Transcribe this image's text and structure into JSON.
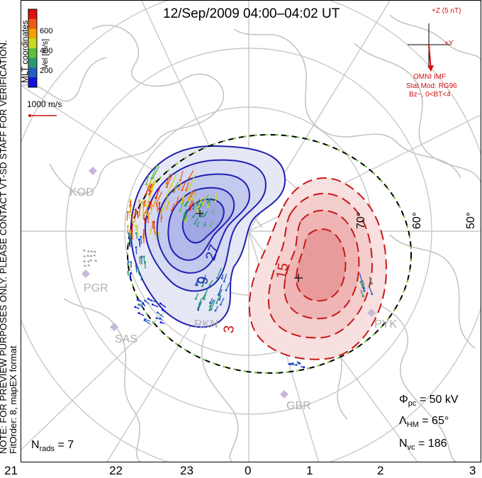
{
  "title": "12/Sep/2009 04:00–04:02 UT",
  "side_note": {
    "line1": "NOTE: FOR PREVIEW PURPOSES ONLY. PLEASE CONTACT VT-SD STAFF FOR VERIFICATION.",
    "line2": "FitOrder: 8, mapEX format"
  },
  "coord_label": "MLT coordinates",
  "colorbar": {
    "label": "Vel [m/s]",
    "ticks": [
      "600",
      "400",
      "200"
    ],
    "colors": [
      "#e01010",
      "#f05a10",
      "#f5a000",
      "#c8d820",
      "#5cc040",
      "#2a9a70",
      "#2060c0",
      "#1010e0"
    ]
  },
  "vector_scale": "1000 m/s",
  "imf": {
    "z_label": "+Z (5 nT)",
    "y_label": "+Y",
    "source": "OMNI IMF",
    "model": "Stat Mod: RG96",
    "condition": "Bz−, 0<BT<4",
    "color": "#d01010"
  },
  "mlt_labels": [
    "21",
    "22",
    "23",
    "0",
    "1",
    "2",
    "3"
  ],
  "latitude_labels": [
    "70°",
    "60°",
    "50°"
  ],
  "contour_labels": [
    "27",
    "9",
    "15",
    "3"
  ],
  "radar_labels": [
    "KOD",
    "PGR",
    "SAS",
    "RKN",
    "PYK",
    "GBR"
  ],
  "stats": {
    "phi_pc_sym": "Φ",
    "phi_pc_sub": "pc",
    "phi_pc_val": "= 50 kV",
    "lambda_sym": "Λ",
    "lambda_sub": "HM",
    "lambda_val": "= 65°",
    "nvc_sym": "N",
    "nvc_sub": "vc",
    "nvc_val": "= 186",
    "nrads_sym": "N",
    "nrads_sub": "rads",
    "nrads_val": "= 7"
  },
  "colors": {
    "negative_cell": "#2020b0",
    "positive_cell": "#c81818",
    "hm_boundary": "#000000",
    "coast": "#c0c0c0"
  }
}
